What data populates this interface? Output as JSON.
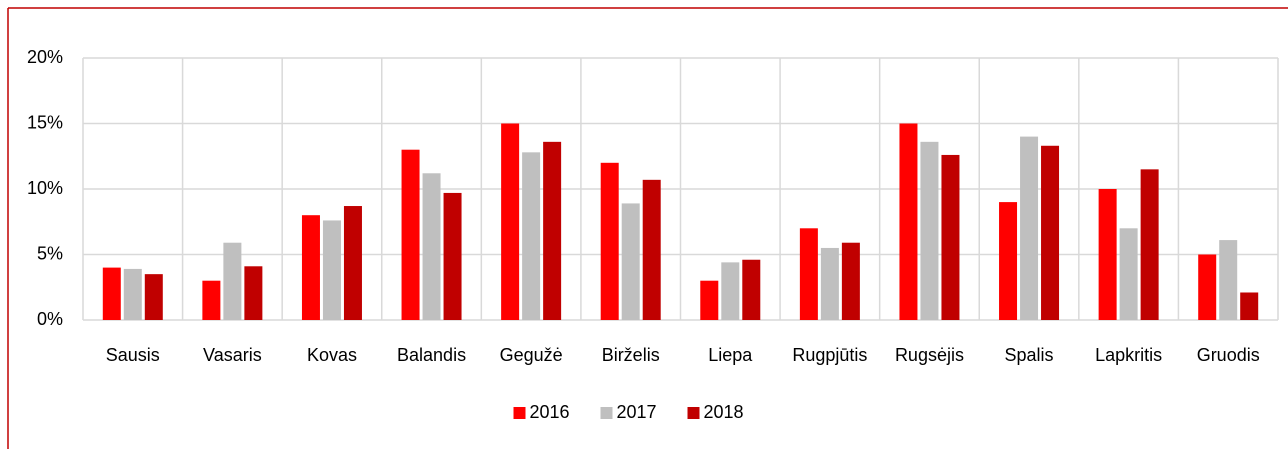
{
  "chart_data": {
    "type": "bar",
    "categories": [
      "Sausis",
      "Vasaris",
      "Kovas",
      "Balandis",
      "Gegužė",
      "Birželis",
      "Liepa",
      "Rugpjūtis",
      "Rugsėjis",
      "Spalis",
      "Lapkritis",
      "Gruodis"
    ],
    "series": [
      {
        "name": "2016",
        "color": "#ff0000",
        "values": [
          4.0,
          3.0,
          8.0,
          13.0,
          15.0,
          12.0,
          3.0,
          7.0,
          15.0,
          9.0,
          10.0,
          5.0
        ]
      },
      {
        "name": "2017",
        "color": "#bfbfbf",
        "values": [
          3.9,
          5.9,
          7.6,
          11.2,
          12.8,
          8.9,
          4.4,
          5.5,
          13.6,
          14.0,
          7.0,
          6.1
        ]
      },
      {
        "name": "2018",
        "color": "#c00000",
        "values": [
          3.5,
          4.1,
          8.7,
          9.7,
          13.6,
          10.7,
          4.6,
          5.9,
          12.6,
          13.3,
          11.5,
          2.1
        ]
      }
    ],
    "ylim": [
      0,
      20
    ],
    "yticks": [
      {
        "value": 0,
        "label": "0%"
      },
      {
        "value": 5,
        "label": "5%"
      },
      {
        "value": 10,
        "label": "10%"
      },
      {
        "value": 15,
        "label": "15%"
      },
      {
        "value": 20,
        "label": "20%"
      }
    ],
    "grid": true,
    "legend": "bottom"
  }
}
